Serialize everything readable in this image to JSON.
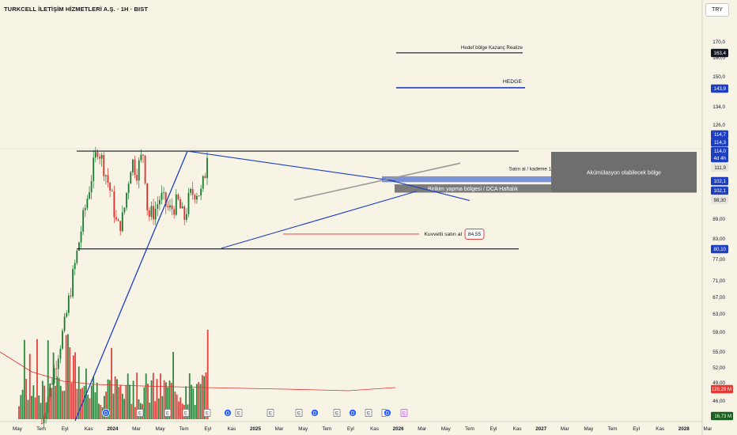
{
  "header": {
    "title": "TURKCELL İLETİŞİM HİZMETLERİ A.Ş. · 1H · BIST",
    "currency": "TRY"
  },
  "chart_data": {
    "type": "candlestick",
    "title": "TURKCELL İLETİŞİM HİZMETLERİ A.Ş. · 1H · BIST",
    "yscale": "log",
    "ylim": [
      41.8,
      178.5
    ],
    "y_ticks": [
      "170,0",
      "160,0",
      "150,0",
      "134,0",
      "126,0",
      "114,0",
      "105,0",
      "89,00",
      "83,00",
      "77,00",
      "71,00",
      "67,00",
      "63,00",
      "59,00",
      "55,00",
      "52,00",
      "49,00",
      "46,00"
    ],
    "x_ticks": [
      "May",
      "Tem",
      "Eyl",
      "Kas",
      "2024",
      "Mar",
      "May",
      "Tem",
      "Eyl",
      "Kas",
      "2025",
      "Mar",
      "May",
      "Tem",
      "Eyl",
      "Kas",
      "2026",
      "Mar",
      "May",
      "Tem",
      "Eyl",
      "Kas",
      "2027",
      "Mar",
      "May",
      "Tem",
      "Eyl",
      "Kas",
      "2028",
      "Mar"
    ],
    "price_path": [
      [
        "2023-09-01",
        42.5
      ],
      [
        "2023-11-01",
        51
      ],
      [
        "2024-01-01",
        61
      ],
      [
        "2024-03-01",
        78
      ],
      [
        "2024-05-01",
        98
      ],
      [
        "2024-06-20",
        116
      ],
      [
        "2024-07-15",
        110
      ],
      [
        "2024-09-01",
        97
      ],
      [
        "2024-10-01",
        86
      ],
      [
        "2024-11-01",
        90
      ],
      [
        "2024-12-15",
        111
      ],
      [
        "2025-01-10",
        106
      ],
      [
        "2025-02-15",
        114
      ],
      [
        "2025-03-10",
        90
      ],
      [
        "2025-04-15",
        92
      ],
      [
        "2025-05-15",
        97
      ],
      [
        "2025-07-01",
        92
      ],
      [
        "2025-08-15",
        95
      ],
      [
        "2025-09-15",
        89
      ],
      [
        "2025-10-15",
        97
      ],
      [
        "2025-11-15",
        99
      ],
      [
        "2025-12-15",
        98
      ],
      [
        "2026-01-05",
        106
      ],
      [
        "2026-01-15",
        114.5
      ]
    ],
    "price_labels": [
      {
        "text": "163,4",
        "color": "#131722"
      },
      {
        "text": "143,9",
        "color": "#1e3fbf"
      },
      {
        "text": "114,7",
        "color": "#1e3fbf"
      },
      {
        "text": "114,3",
        "color": "#1e3fbf"
      },
      {
        "text": "114,0",
        "color": "#1e3fbf"
      },
      {
        "text": "4d 4h",
        "color": "#1e3fbf"
      },
      {
        "text": "111,9",
        "color": "#555555"
      },
      {
        "text": "102,1",
        "color": "#1e3fbf"
      },
      {
        "text": "102,1",
        "color": "#1e3fbf"
      },
      {
        "text": "98,30",
        "color": "#555555"
      },
      {
        "text": "80,10",
        "color": "#1e3fbf"
      }
    ],
    "volume_labels": [
      {
        "text": "126,29 M",
        "color": "#e53935"
      },
      {
        "text": "16,73 M",
        "color": "#1b5e20"
      }
    ],
    "levels": [
      {
        "label": "Hedef bölge Kazanç Realize",
        "value": 163.4,
        "color": "#131722"
      },
      {
        "label": "HEDGE",
        "value": 143.9,
        "color": "#1e3fbf"
      },
      {
        "label": "Satın al / kademe 1",
        "value": 102.1,
        "color": "#1e3fbf"
      },
      {
        "label": "Kuvvetli satın al",
        "value": 84.55,
        "color": "#e53935"
      }
    ],
    "zones": [
      {
        "label": "Birikim yapma bölgesi / DCA Haftalık",
        "from": 98.3,
        "to": 101.3
      },
      {
        "label": "Akümülasyon olabilecek bölge",
        "from": 98.3,
        "to": 114.0
      }
    ],
    "kuvvetli_value": "84,55",
    "volume": {
      "moving_average": true,
      "last": "16,73 M",
      "ma_label": "126,29 M"
    },
    "event_markers": [
      "D",
      "E",
      "E",
      "E",
      "E",
      "D",
      "E",
      "E",
      "E",
      "D",
      "E",
      "D",
      "E",
      "E",
      "D",
      "E"
    ]
  },
  "colors": {
    "up": "#1b7a2f",
    "down": "#e0302c",
    "blue": "#1e3fbf",
    "gray_zone": "#6e6e6e",
    "bg": "#f7f4e6"
  }
}
